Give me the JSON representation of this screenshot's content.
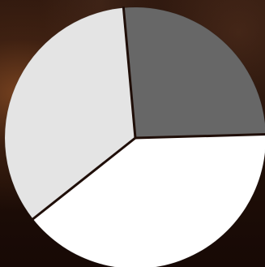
{
  "chart_data": {
    "type": "pie",
    "title": "",
    "slices": [
      {
        "value": 26.0,
        "color": "#676767"
      },
      {
        "value": 39.8,
        "color": "#ffffff"
      },
      {
        "value": 34.2,
        "color": "#e4e4e4"
      }
    ],
    "start_angle_deg": -5.2,
    "separator_color": "#1f0e08",
    "legend": "none"
  },
  "background_colors": {
    "base": "#1e0f09",
    "warm_accent": "#965428"
  }
}
